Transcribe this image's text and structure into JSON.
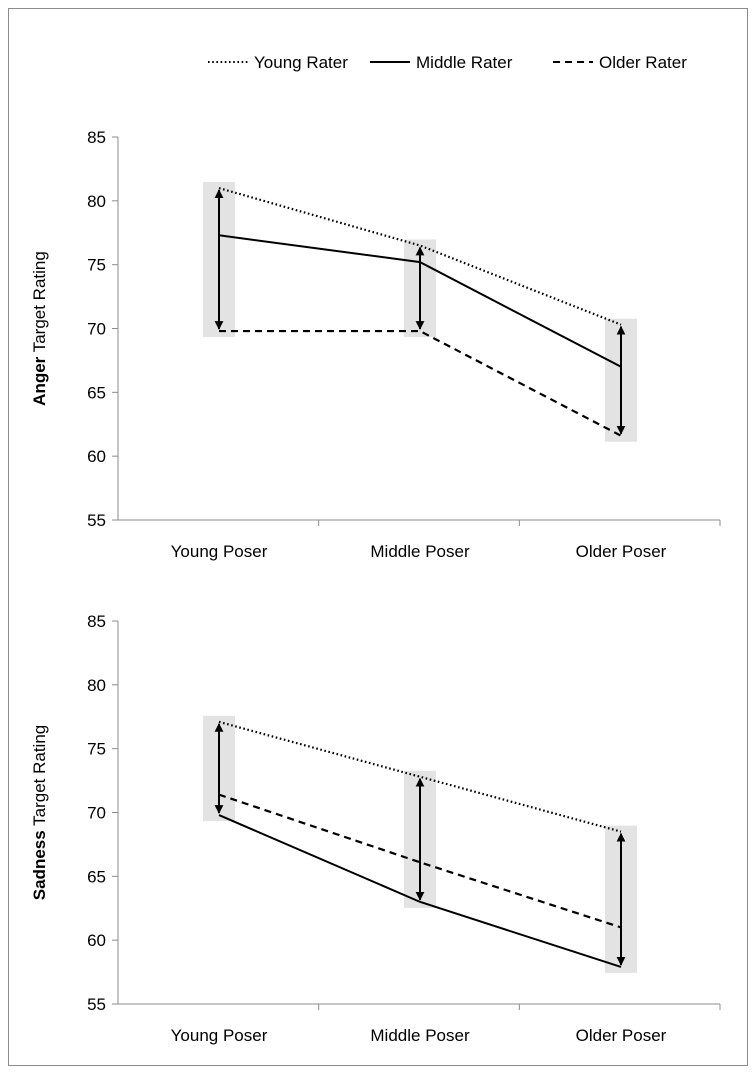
{
  "legend": {
    "position": "top-right",
    "items": [
      {
        "label": "Young Rater",
        "style": "dotted"
      },
      {
        "label": "Middle Rater",
        "style": "solid"
      },
      {
        "label": "Older Rater",
        "style": "dashed"
      }
    ]
  },
  "colors": {
    "line": "#000000",
    "range_band": "#e3e3e3",
    "axis": "#8c8c8c",
    "frame": "#8c8c8c"
  },
  "chart_data": [
    {
      "type": "line",
      "ylabel_bold": "Anger",
      "ylabel_rest": " Target Rating",
      "categories": [
        "Young Poser",
        "Middle Poser",
        "Older Poser"
      ],
      "ylim": [
        55,
        85
      ],
      "yticks": [
        "55",
        "60",
        "65",
        "70",
        "75",
        "80",
        "85"
      ],
      "grid": false,
      "series": [
        {
          "name": "Young Rater",
          "style": "dotted",
          "values": [
            81.0,
            76.5,
            70.3
          ]
        },
        {
          "name": "Middle Rater",
          "style": "solid",
          "values": [
            77.3,
            75.2,
            67.0
          ]
        },
        {
          "name": "Older Rater",
          "style": "dashed",
          "values": [
            69.8,
            69.8,
            61.6
          ]
        }
      ],
      "range_arrows": [
        {
          "low": 69.8,
          "high": 81.0
        },
        {
          "low": 69.8,
          "high": 76.5
        },
        {
          "low": 61.6,
          "high": 70.3
        }
      ]
    },
    {
      "type": "line",
      "ylabel_bold": "Sadness",
      "ylabel_rest": " Target Rating",
      "categories": [
        "Young Poser",
        "Middle Poser",
        "Older Poser"
      ],
      "ylim": [
        55,
        85
      ],
      "yticks": [
        "55",
        "60",
        "65",
        "70",
        "75",
        "80",
        "85"
      ],
      "grid": false,
      "series": [
        {
          "name": "Young Rater",
          "style": "dotted",
          "values": [
            77.1,
            72.8,
            68.5
          ]
        },
        {
          "name": "Middle Rater",
          "style": "solid",
          "values": [
            69.8,
            63.0,
            57.9
          ]
        },
        {
          "name": "Older Rater",
          "style": "dashed",
          "values": [
            71.4,
            66.1,
            61.0
          ]
        }
      ],
      "range_arrows": [
        {
          "low": 69.8,
          "high": 77.1
        },
        {
          "low": 63.0,
          "high": 72.8
        },
        {
          "low": 57.9,
          "high": 68.5
        }
      ]
    }
  ]
}
